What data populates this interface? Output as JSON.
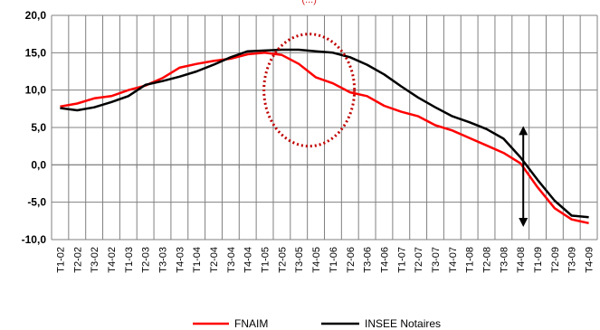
{
  "chart_data": {
    "type": "line",
    "title": "",
    "xlabel": "",
    "ylabel": "",
    "ylim": [
      -10,
      20
    ],
    "yticks": [
      -10,
      -5,
      0,
      5,
      10,
      15,
      20
    ],
    "ytick_labels": [
      "-10,0",
      "-5,0",
      "0,0",
      "5,0",
      "10,0",
      "15,0",
      "20,0"
    ],
    "grid": true,
    "legend_position": "bottom",
    "categories": [
      "T1-02",
      "T2-02",
      "T3-02",
      "T4-02",
      "T1-03",
      "T2-03",
      "T3-03",
      "T4-03",
      "T1-04",
      "T2-04",
      "T3-04",
      "T4-04",
      "T1-05",
      "T2-05",
      "T3-05",
      "T4-05",
      "T1-06",
      "T2-06",
      "T3-06",
      "T4-06",
      "T1-07",
      "T2-07",
      "T3-07",
      "T4-07",
      "T1-08",
      "T2-08",
      "T3-08",
      "T4-08",
      "T1-09",
      "T2-09",
      "T3-09",
      "T4-09"
    ],
    "series": [
      {
        "name": "FNAIM",
        "color": "#ff0000",
        "values": [
          7.8,
          8.2,
          8.9,
          9.2,
          10.0,
          10.6,
          11.6,
          13.0,
          13.5,
          13.9,
          14.2,
          14.8,
          15.0,
          14.7,
          13.5,
          11.7,
          10.9,
          9.7,
          9.2,
          7.9,
          7.1,
          6.5,
          5.3,
          4.6,
          3.6,
          2.6,
          1.6,
          0.2,
          -3.0,
          -5.8,
          -7.3,
          -7.8
        ]
      },
      {
        "name": "INSEE Notaires",
        "color": "#000000",
        "values": [
          7.6,
          7.3,
          7.7,
          8.4,
          9.2,
          10.7,
          11.2,
          11.8,
          12.5,
          13.4,
          14.4,
          15.2,
          15.3,
          15.4,
          15.4,
          15.2,
          15.0,
          14.4,
          13.4,
          12.1,
          10.5,
          9.0,
          7.7,
          6.5,
          5.7,
          4.8,
          3.5,
          1.0,
          -2.0,
          -4.8,
          -6.8,
          -7.0
        ]
      }
    ],
    "annotations": [
      {
        "type": "dotted-circle",
        "color": "#c00000",
        "text": "(...)"
      },
      {
        "type": "double-arrow",
        "color": "#000000",
        "category": "T4-08",
        "from": -8.3,
        "to": 5.2
      }
    ]
  }
}
